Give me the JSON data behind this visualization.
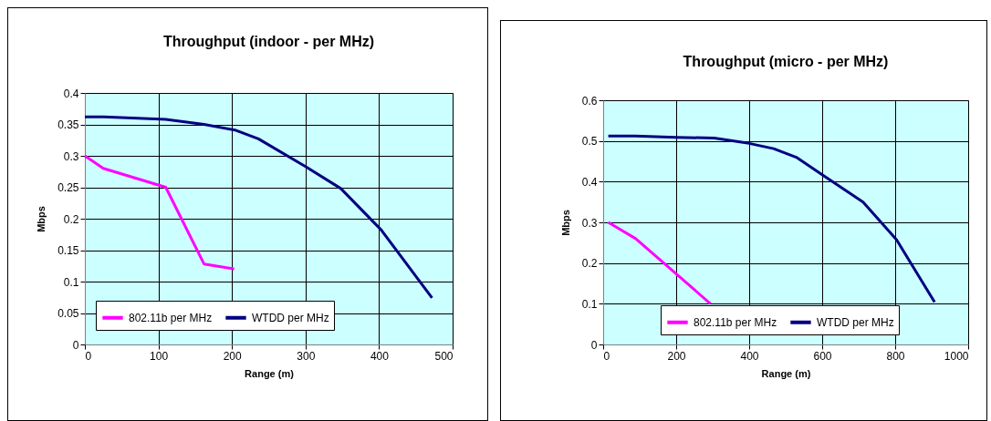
{
  "chart_data": [
    {
      "type": "line",
      "title": "Throughput (indoor - per MHz)",
      "xlabel": "Range (m)",
      "ylabel": "Mbps",
      "xlim": [
        0,
        500
      ],
      "xticks": [
        0,
        100,
        200,
        300,
        400,
        500
      ],
      "ylim": [
        0,
        0.4
      ],
      "yticks": [
        0,
        0.05,
        0.1,
        0.15,
        0.2,
        0.25,
        0.3,
        0.35,
        0.4
      ],
      "grid": true,
      "legend": "bottom",
      "marker": "none",
      "line_style": "solid",
      "series": [
        {
          "name": "802.11b per MHz",
          "color": "#ff00ff",
          "x": [
            0,
            25,
            110,
            162,
            203
          ],
          "values": [
            0.3,
            0.28,
            0.25,
            0.128,
            0.12
          ]
        },
        {
          "name": "WTDD per MHz",
          "color": "#000080",
          "x": [
            0,
            26,
            110,
            162,
            204,
            236,
            300,
            348,
            403,
            472
          ],
          "values": [
            0.362,
            0.362,
            0.358,
            0.35,
            0.341,
            0.327,
            0.283,
            0.248,
            0.182,
            0.074
          ]
        }
      ]
    },
    {
      "type": "line",
      "title": "Throughput (micro - per MHz)",
      "xlabel": "Range (m)",
      "ylabel": "Mbps",
      "xlim": [
        0,
        1000
      ],
      "xticks": [
        0,
        200,
        400,
        600,
        800,
        1000
      ],
      "ylim": [
        0,
        0.6
      ],
      "yticks": [
        0,
        0.1,
        0.2,
        0.3,
        0.4,
        0.5,
        0.6
      ],
      "grid": true,
      "legend": "bottom",
      "marker": "none",
      "line_style": "solid",
      "series": [
        {
          "name": "802.11b per MHz",
          "color": "#ff00ff",
          "x": [
            14,
            89,
            294
          ],
          "values": [
            0.3,
            0.26,
            0.1
          ]
        },
        {
          "name": "WTDD per MHz",
          "color": "#000080",
          "x": [
            14,
            88,
            200,
            304,
            400,
            467,
            529,
            600,
            712,
            804,
            908
          ],
          "values": [
            0.512,
            0.512,
            0.509,
            0.507,
            0.494,
            0.481,
            0.46,
            0.417,
            0.35,
            0.257,
            0.104
          ]
        }
      ]
    }
  ]
}
